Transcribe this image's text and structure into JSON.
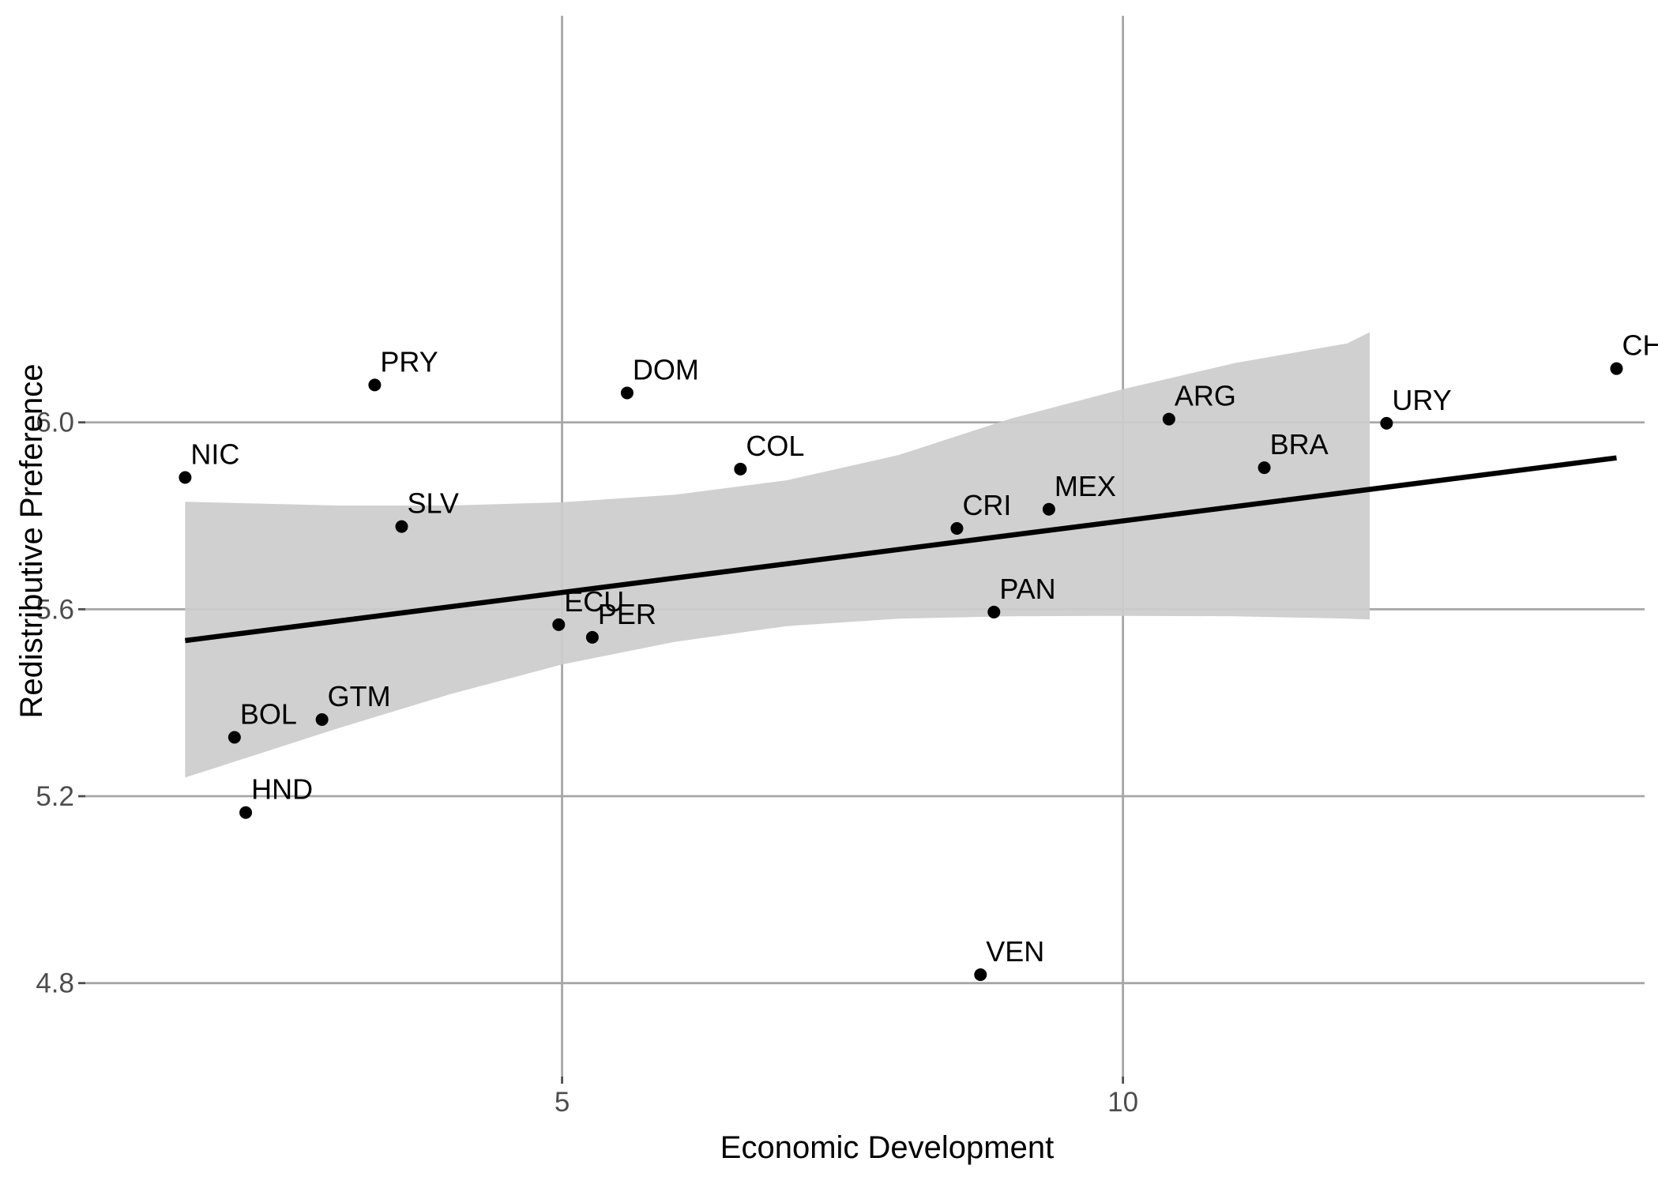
{
  "chart_data": {
    "type": "scatter",
    "title": "",
    "xlabel": "Economic Development",
    "ylabel": "Redistributive Preference",
    "xlim": [
      0.75,
      14.65
    ],
    "ylim": [
      4.6,
      6.87
    ],
    "x_ticks": [
      {
        "value": 5,
        "label": "5"
      },
      {
        "value": 10,
        "label": "10"
      }
    ],
    "y_ticks": [
      {
        "value": 4.8,
        "label": "4.8"
      },
      {
        "value": 5.2,
        "label": "5.2"
      },
      {
        "value": 5.6,
        "label": "5.6"
      },
      {
        "value": 6.0,
        "label": "6.0"
      }
    ],
    "grid": true,
    "legend": "none",
    "points": [
      {
        "label": "CHL",
        "x": 14.4,
        "y": 6.115
      },
      {
        "label": "PRY",
        "x": 3.33,
        "y": 6.08
      },
      {
        "label": "DOM",
        "x": 5.58,
        "y": 6.063
      },
      {
        "label": "ARG",
        "x": 10.41,
        "y": 6.007
      },
      {
        "label": "URY",
        "x": 12.35,
        "y": 5.998
      },
      {
        "label": "BRA",
        "x": 11.26,
        "y": 5.903
      },
      {
        "label": "COL",
        "x": 6.59,
        "y": 5.9
      },
      {
        "label": "NIC",
        "x": 1.64,
        "y": 5.882
      },
      {
        "label": "MEX",
        "x": 9.34,
        "y": 5.814
      },
      {
        "label": "SLV",
        "x": 3.57,
        "y": 5.777
      },
      {
        "label": "CRI",
        "x": 8.52,
        "y": 5.773
      },
      {
        "label": "PAN",
        "x": 8.85,
        "y": 5.594
      },
      {
        "label": "ECU",
        "x": 4.97,
        "y": 5.567
      },
      {
        "label": "PER",
        "x": 5.27,
        "y": 5.54
      },
      {
        "label": "GTM",
        "x": 2.86,
        "y": 5.364
      },
      {
        "label": "BOL",
        "x": 2.08,
        "y": 5.326
      },
      {
        "label": "HND",
        "x": 2.18,
        "y": 5.165
      },
      {
        "label": "VEN",
        "x": 8.73,
        "y": 4.818
      }
    ],
    "fit_line": {
      "x": [
        1.64,
        14.4
      ],
      "y": [
        5.533,
        5.924
      ]
    },
    "confidence_band": {
      "x": [
        1.64,
        3.0,
        4.0,
        5.0,
        6.0,
        7.0,
        8.0,
        9.0,
        10.0,
        11.0,
        12.0,
        12.2
      ],
      "lower": [
        5.24,
        5.345,
        5.418,
        5.482,
        5.53,
        5.564,
        5.58,
        5.585,
        5.586,
        5.585,
        5.58,
        5.578
      ],
      "upper": [
        5.83,
        5.822,
        5.822,
        5.829,
        5.845,
        5.876,
        5.93,
        6.008,
        6.071,
        6.127,
        6.169,
        6.193
      ]
    },
    "colors": {
      "point": "#000000",
      "fit_line": "#000000",
      "band": "#cccccc",
      "grid": "#a6a6a6",
      "tick_text": "#4d4d4d"
    }
  }
}
